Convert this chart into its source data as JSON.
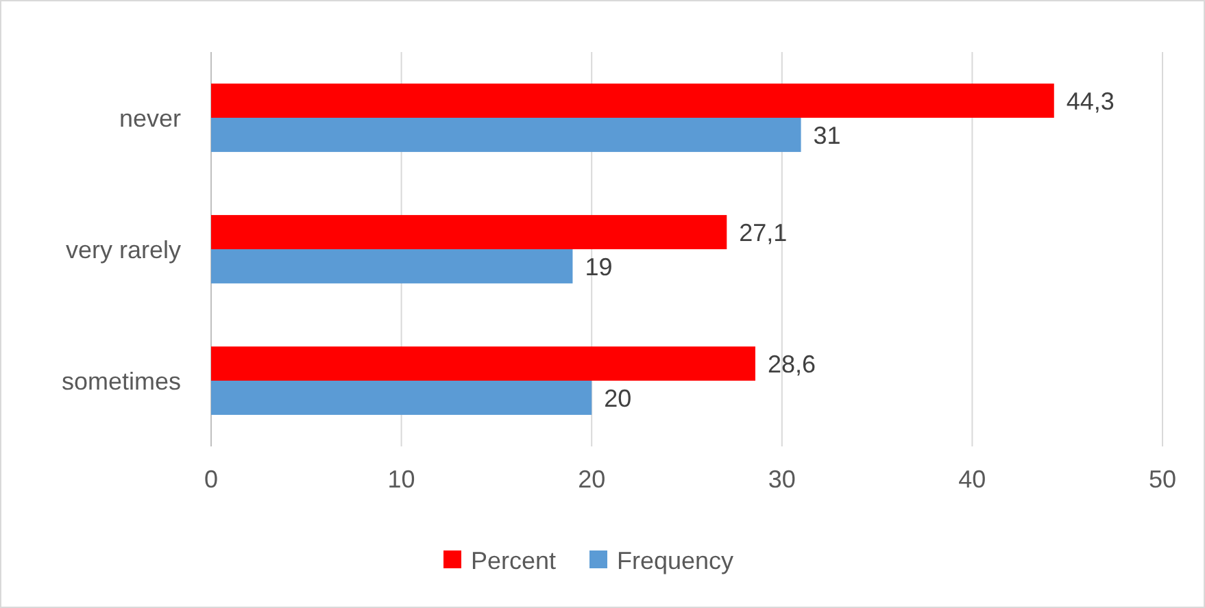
{
  "chart_data": {
    "type": "bar",
    "orientation": "horizontal",
    "categories": [
      "never",
      "very rarely",
      "sometimes"
    ],
    "series": [
      {
        "name": "Percent",
        "color": "#ff0000",
        "values": [
          44.3,
          27.1,
          28.6
        ],
        "value_labels": [
          "44,3",
          "27,1",
          "28,6"
        ]
      },
      {
        "name": "Frequency",
        "color": "#5b9bd5",
        "values": [
          31,
          19,
          20
        ],
        "value_labels": [
          "31",
          "19",
          "20"
        ]
      }
    ],
    "xlim": [
      0,
      50
    ],
    "xticks": [
      0,
      10,
      20,
      30,
      40,
      50
    ],
    "grid": "x",
    "legend": "bottom"
  }
}
